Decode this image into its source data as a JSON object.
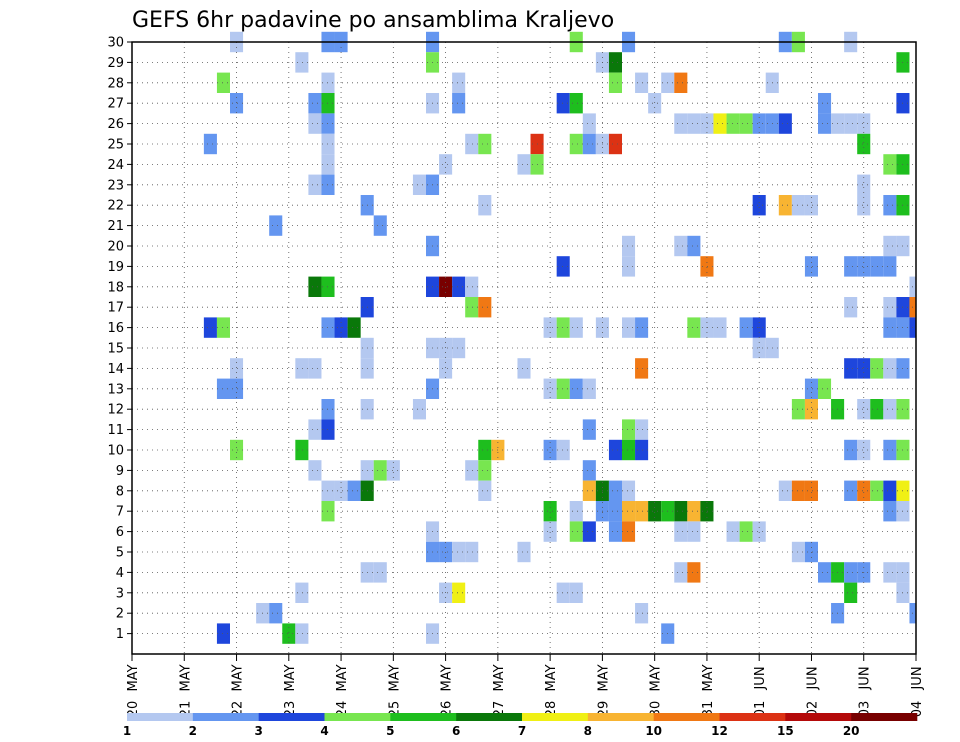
{
  "chart_data": {
    "type": "heatmap",
    "title": "GEFS 6hr padavine po ansamblima Kraljevo",
    "xlabel": "",
    "ylabel": "",
    "x_tick_labels": [
      "20 MAY",
      "21 MAY",
      "22 MAY",
      "23 MAY",
      "24 MAY",
      "25 MAY",
      "26 MAY",
      "27 MAY",
      "28 MAY",
      "29 MAY",
      "30 MAY",
      "31 MAY",
      "01 JUN",
      "02 JUN",
      "03 JUN",
      "04 JUN"
    ],
    "x_tick_parts": [
      [
        "20",
        "MAY"
      ],
      [
        "21",
        "MAY"
      ],
      [
        "22",
        "MAY"
      ],
      [
        "23",
        "MAY"
      ],
      [
        "24",
        "MAY"
      ],
      [
        "25",
        "MAY"
      ],
      [
        "26",
        "MAY"
      ],
      [
        "27",
        "MAY"
      ],
      [
        "28",
        "MAY"
      ],
      [
        "29",
        "MAY"
      ],
      [
        "30",
        "MAY"
      ],
      [
        "31",
        "MAY"
      ],
      [
        "01",
        "JUN"
      ],
      [
        "02",
        "JUN"
      ],
      [
        "03",
        "JUN"
      ],
      [
        "04",
        "JUN"
      ]
    ],
    "x_unit": "6-hour step",
    "x_range": [
      0,
      60
    ],
    "y_range": [
      0,
      30
    ],
    "y_ticks": [
      1,
      2,
      3,
      4,
      5,
      6,
      7,
      8,
      9,
      10,
      11,
      12,
      13,
      14,
      15,
      16,
      17,
      18,
      19,
      20,
      21,
      22,
      23,
      24,
      25,
      26,
      27,
      28,
      29,
      30
    ],
    "grid": true,
    "grid_style": "dotted",
    "levels": [
      1,
      2,
      3,
      4,
      5,
      6,
      7,
      8,
      10,
      12,
      15,
      20
    ],
    "level_labels": [
      "1",
      "2",
      "3",
      "4",
      "5",
      "6",
      "7",
      "8",
      "10",
      "12",
      "15",
      "20"
    ],
    "colors": [
      "#b4c8f0",
      "#6496f0",
      "#1e46dc",
      "#78e650",
      "#1ebe1e",
      "#0a780a",
      "#f0f014",
      "#f8b432",
      "#f07814",
      "#dc3214",
      "#b40a0a",
      "#780000"
    ],
    "cells_note": "each cell: [time_step, member, precipitation_mm]",
    "cells": [
      [
        8,
        30,
        1.5
      ],
      [
        15,
        30,
        2.5
      ],
      [
        16,
        30,
        2.5
      ],
      [
        23,
        30,
        2.5
      ],
      [
        34,
        30,
        4.5
      ],
      [
        38,
        30,
        2.5
      ],
      [
        50,
        30,
        2
      ],
      [
        51,
        30,
        4.5
      ],
      [
        55,
        30,
        1.5
      ],
      [
        13,
        29,
        1.5
      ],
      [
        23,
        29,
        4.5
      ],
      [
        36,
        29,
        1.5
      ],
      [
        37,
        29,
        6.5
      ],
      [
        59,
        29,
        5.5
      ],
      [
        7,
        28,
        4.5
      ],
      [
        15,
        28,
        1.5
      ],
      [
        25,
        28,
        1.5
      ],
      [
        37,
        28,
        4.5
      ],
      [
        39,
        28,
        1.5
      ],
      [
        41,
        28,
        1.5
      ],
      [
        42,
        28,
        11
      ],
      [
        49,
        28,
        1.5
      ],
      [
        8,
        27,
        2.5
      ],
      [
        14,
        27,
        2
      ],
      [
        15,
        27,
        5.5
      ],
      [
        23,
        27,
        1.5
      ],
      [
        25,
        27,
        2
      ],
      [
        33,
        27,
        3.5
      ],
      [
        34,
        27,
        5.5
      ],
      [
        40,
        27,
        1.5
      ],
      [
        53,
        27,
        2
      ],
      [
        59,
        27,
        3.5
      ],
      [
        14,
        26,
        1.5
      ],
      [
        15,
        26,
        2
      ],
      [
        35,
        26,
        1.5
      ],
      [
        42,
        26,
        1.5
      ],
      [
        43,
        26,
        1.5
      ],
      [
        44,
        26,
        1.5
      ],
      [
        45,
        26,
        7.5
      ],
      [
        46,
        26,
        4.5
      ],
      [
        47,
        26,
        4.5
      ],
      [
        48,
        26,
        2
      ],
      [
        49,
        26,
        2
      ],
      [
        50,
        26,
        3.5
      ],
      [
        53,
        26,
        2
      ],
      [
        54,
        26,
        1.5
      ],
      [
        55,
        26,
        1.5
      ],
      [
        56,
        26,
        1.5
      ],
      [
        6,
        25,
        2
      ],
      [
        15,
        25,
        1.5
      ],
      [
        26,
        25,
        1.5
      ],
      [
        27,
        25,
        4.5
      ],
      [
        31,
        25,
        13
      ],
      [
        34,
        25,
        4.5
      ],
      [
        35,
        25,
        2
      ],
      [
        36,
        25,
        1.5
      ],
      [
        37,
        25,
        14
      ],
      [
        56,
        25,
        5.5
      ],
      [
        15,
        24,
        1.5
      ],
      [
        24,
        24,
        1.5
      ],
      [
        30,
        24,
        1.5
      ],
      [
        31,
        24,
        4.5
      ],
      [
        58,
        24,
        4.5
      ],
      [
        59,
        24,
        5.5
      ],
      [
        14,
        23,
        1.5
      ],
      [
        15,
        23,
        2
      ],
      [
        22,
        23,
        1.5
      ],
      [
        23,
        23,
        2
      ],
      [
        56,
        23,
        1.5
      ],
      [
        18,
        22,
        2
      ],
      [
        27,
        22,
        1.5
      ],
      [
        48,
        22,
        3.5
      ],
      [
        50,
        22,
        9
      ],
      [
        51,
        22,
        1.5
      ],
      [
        52,
        22,
        1.5
      ],
      [
        56,
        22,
        1.5
      ],
      [
        58,
        22,
        2
      ],
      [
        59,
        22,
        5.5
      ],
      [
        11,
        21,
        2
      ],
      [
        19,
        21,
        2
      ],
      [
        23,
        20,
        2
      ],
      [
        38,
        20,
        1.5
      ],
      [
        42,
        20,
        1.5
      ],
      [
        43,
        20,
        2
      ],
      [
        58,
        20,
        1.5
      ],
      [
        59,
        20,
        1.5
      ],
      [
        33,
        19,
        3.5
      ],
      [
        38,
        19,
        1.5
      ],
      [
        44,
        19,
        11
      ],
      [
        52,
        19,
        2
      ],
      [
        55,
        19,
        2
      ],
      [
        56,
        19,
        2
      ],
      [
        57,
        19,
        2
      ],
      [
        58,
        19,
        2
      ],
      [
        14,
        18,
        6.5
      ],
      [
        15,
        18,
        5.5
      ],
      [
        23,
        18,
        3.5
      ],
      [
        24,
        18,
        25
      ],
      [
        25,
        18,
        3.5
      ],
      [
        26,
        18,
        1.5
      ],
      [
        60,
        18,
        1.5
      ],
      [
        18,
        17,
        3.5
      ],
      [
        26,
        17,
        4.5
      ],
      [
        27,
        17,
        11
      ],
      [
        55,
        17,
        1.5
      ],
      [
        58,
        17,
        1.5
      ],
      [
        59,
        17,
        3.5
      ],
      [
        60,
        17,
        11
      ],
      [
        6,
        16,
        3.5
      ],
      [
        7,
        16,
        4.5
      ],
      [
        15,
        16,
        2
      ],
      [
        16,
        16,
        3.5
      ],
      [
        17,
        16,
        6.5
      ],
      [
        32,
        16,
        1.5
      ],
      [
        33,
        16,
        4.5
      ],
      [
        34,
        16,
        1.5
      ],
      [
        36,
        16,
        1.5
      ],
      [
        38,
        16,
        1.5
      ],
      [
        39,
        16,
        2
      ],
      [
        43,
        16,
        4.5
      ],
      [
        44,
        16,
        1.5
      ],
      [
        45,
        16,
        1.5
      ],
      [
        47,
        16,
        2
      ],
      [
        48,
        16,
        3.5
      ],
      [
        58,
        16,
        2
      ],
      [
        59,
        16,
        2
      ],
      [
        60,
        16,
        3.5
      ],
      [
        18,
        15,
        1.5
      ],
      [
        23,
        15,
        1.5
      ],
      [
        24,
        15,
        1.5
      ],
      [
        25,
        15,
        1.5
      ],
      [
        48,
        15,
        1.5
      ],
      [
        49,
        15,
        1.5
      ],
      [
        8,
        14,
        1.5
      ],
      [
        13,
        14,
        1.5
      ],
      [
        14,
        14,
        1.5
      ],
      [
        18,
        14,
        1.5
      ],
      [
        24,
        14,
        1.5
      ],
      [
        30,
        14,
        1.5
      ],
      [
        39,
        14,
        11
      ],
      [
        55,
        14,
        3.5
      ],
      [
        56,
        14,
        3.5
      ],
      [
        57,
        14,
        4.5
      ],
      [
        58,
        14,
        1.5
      ],
      [
        59,
        14,
        2
      ],
      [
        7,
        13,
        2
      ],
      [
        8,
        13,
        2
      ],
      [
        23,
        13,
        2
      ],
      [
        32,
        13,
        1.5
      ],
      [
        33,
        13,
        4.5
      ],
      [
        34,
        13,
        2
      ],
      [
        35,
        13,
        1.5
      ],
      [
        52,
        13,
        2
      ],
      [
        53,
        13,
        4.5
      ],
      [
        15,
        12,
        2
      ],
      [
        18,
        12,
        1.5
      ],
      [
        22,
        12,
        1.5
      ],
      [
        51,
        12,
        4.5
      ],
      [
        52,
        12,
        9
      ],
      [
        54,
        12,
        5.5
      ],
      [
        56,
        12,
        1.5
      ],
      [
        57,
        12,
        5.5
      ],
      [
        58,
        12,
        1.5
      ],
      [
        59,
        12,
        4.5
      ],
      [
        14,
        11,
        1.5
      ],
      [
        15,
        11,
        3.5
      ],
      [
        35,
        11,
        2
      ],
      [
        38,
        11,
        4.5
      ],
      [
        39,
        11,
        1.5
      ],
      [
        8,
        10,
        4.5
      ],
      [
        13,
        10,
        5.5
      ],
      [
        27,
        10,
        5.5
      ],
      [
        28,
        10,
        9
      ],
      [
        32,
        10,
        2
      ],
      [
        33,
        10,
        1.5
      ],
      [
        37,
        10,
        3.5
      ],
      [
        38,
        10,
        5.5
      ],
      [
        39,
        10,
        3.5
      ],
      [
        55,
        10,
        2
      ],
      [
        56,
        10,
        1.5
      ],
      [
        58,
        10,
        2
      ],
      [
        59,
        10,
        4.5
      ],
      [
        14,
        9,
        1.5
      ],
      [
        18,
        9,
        1.5
      ],
      [
        19,
        9,
        4.5
      ],
      [
        20,
        9,
        1.5
      ],
      [
        26,
        9,
        1.5
      ],
      [
        27,
        9,
        4.5
      ],
      [
        35,
        9,
        2
      ],
      [
        15,
        8,
        1.5
      ],
      [
        16,
        8,
        1.5
      ],
      [
        17,
        8,
        2
      ],
      [
        18,
        8,
        6.5
      ],
      [
        27,
        8,
        1.5
      ],
      [
        35,
        8,
        9
      ],
      [
        36,
        8,
        6.5
      ],
      [
        37,
        8,
        2
      ],
      [
        38,
        8,
        1.5
      ],
      [
        50,
        8,
        1.5
      ],
      [
        51,
        8,
        11
      ],
      [
        52,
        8,
        11
      ],
      [
        55,
        8,
        2
      ],
      [
        56,
        8,
        11
      ],
      [
        57,
        8,
        4.5
      ],
      [
        58,
        8,
        3.5
      ],
      [
        59,
        8,
        7.5
      ],
      [
        15,
        7,
        4.5
      ],
      [
        32,
        7,
        5.5
      ],
      [
        34,
        7,
        1.5
      ],
      [
        36,
        7,
        2
      ],
      [
        37,
        7,
        2
      ],
      [
        38,
        7,
        9
      ],
      [
        39,
        7,
        9
      ],
      [
        40,
        7,
        6.5
      ],
      [
        41,
        7,
        5.5
      ],
      [
        42,
        7,
        6.5
      ],
      [
        43,
        7,
        9
      ],
      [
        44,
        7,
        6.5
      ],
      [
        58,
        7,
        2
      ],
      [
        59,
        7,
        1.5
      ],
      [
        23,
        6,
        1.5
      ],
      [
        32,
        6,
        1.5
      ],
      [
        34,
        6,
        4.5
      ],
      [
        35,
        6,
        3.5
      ],
      [
        37,
        6,
        2
      ],
      [
        38,
        6,
        11
      ],
      [
        42,
        6,
        1.5
      ],
      [
        43,
        6,
        1.5
      ],
      [
        46,
        6,
        1.5
      ],
      [
        47,
        6,
        4.5
      ],
      [
        48,
        6,
        1.5
      ],
      [
        23,
        5,
        2
      ],
      [
        24,
        5,
        2
      ],
      [
        25,
        5,
        1.5
      ],
      [
        26,
        5,
        1.5
      ],
      [
        30,
        5,
        1.5
      ],
      [
        51,
        5,
        1.5
      ],
      [
        52,
        5,
        2
      ],
      [
        18,
        4,
        1.5
      ],
      [
        19,
        4,
        1.5
      ],
      [
        42,
        4,
        1.5
      ],
      [
        43,
        4,
        11
      ],
      [
        53,
        4,
        2
      ],
      [
        54,
        4,
        5.5
      ],
      [
        55,
        4,
        2
      ],
      [
        56,
        4,
        2
      ],
      [
        58,
        4,
        1.5
      ],
      [
        59,
        4,
        1.5
      ],
      [
        13,
        3,
        1.5
      ],
      [
        24,
        3,
        1.5
      ],
      [
        25,
        3,
        7.5
      ],
      [
        33,
        3,
        1.5
      ],
      [
        34,
        3,
        1.5
      ],
      [
        55,
        3,
        5.5
      ],
      [
        59,
        3,
        1.5
      ],
      [
        10,
        2,
        1.5
      ],
      [
        11,
        2,
        2
      ],
      [
        39,
        2,
        1.5
      ],
      [
        54,
        2,
        2
      ],
      [
        60,
        2,
        2
      ],
      [
        7,
        1,
        3.5
      ],
      [
        12,
        1,
        5.5
      ],
      [
        13,
        1,
        1.5
      ],
      [
        23,
        1,
        1.5
      ],
      [
        41,
        1,
        2
      ]
    ]
  }
}
